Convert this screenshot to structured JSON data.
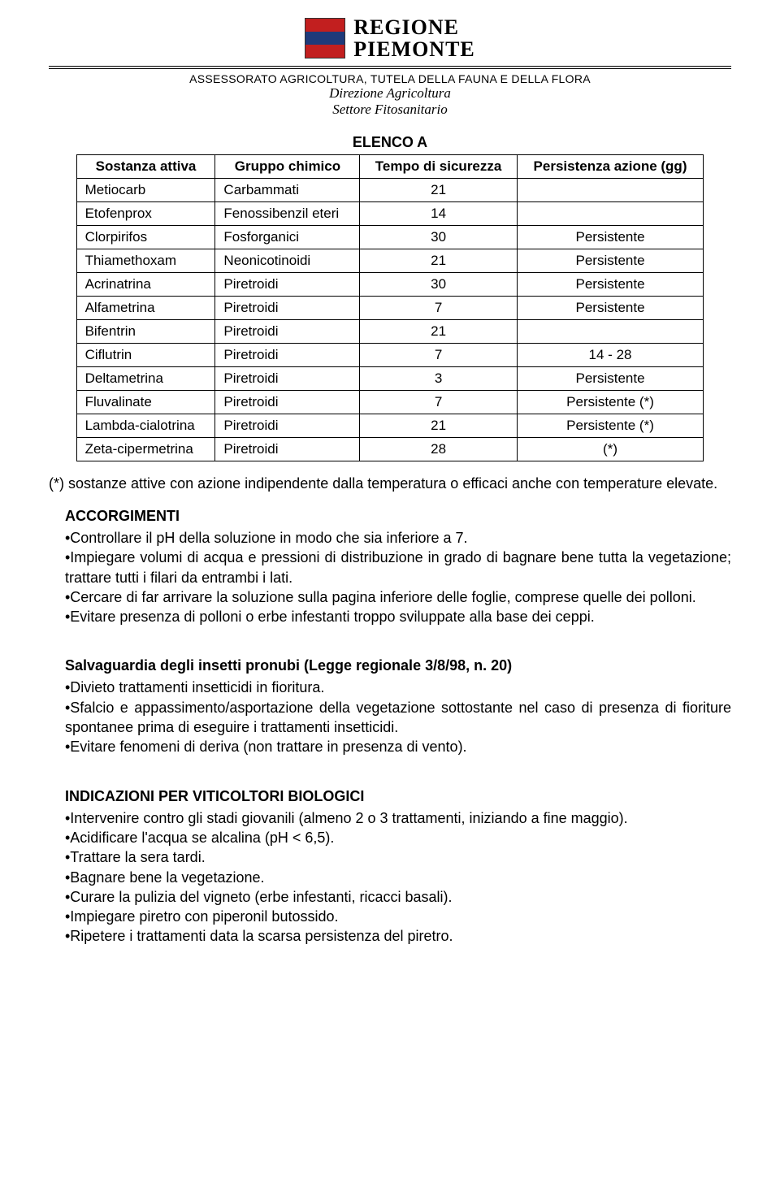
{
  "logo": {
    "line1": "REGIONE",
    "line2": "PIEMONTE"
  },
  "header": {
    "assessorato": "ASSESSORATO AGRICOLTURA, TUTELA DELLA FAUNA E DELLA FLORA",
    "direzione": "Direzione Agricoltura",
    "settore": "Settore Fitosanitario"
  },
  "table": {
    "title": "ELENCO A",
    "columns": [
      "Sostanza attiva",
      "Gruppo chimico",
      "Tempo di sicurezza",
      "Persistenza azione (gg)"
    ],
    "rows": [
      [
        "Metiocarb",
        "Carbammati",
        "21",
        ""
      ],
      [
        "Etofenprox",
        "Fenossibenzil eteri",
        "14",
        ""
      ],
      [
        "Clorpirifos",
        "Fosforganici",
        "30",
        "Persistente"
      ],
      [
        "Thiamethoxam",
        "Neonicotinoidi",
        "21",
        "Persistente"
      ],
      [
        "Acrinatrina",
        "Piretroidi",
        "30",
        "Persistente"
      ],
      [
        "Alfametrina",
        "Piretroidi",
        "7",
        "Persistente"
      ],
      [
        "Bifentrin",
        "Piretroidi",
        "21",
        ""
      ],
      [
        "Ciflutrin",
        "Piretroidi",
        "7",
        "14 - 28"
      ],
      [
        "Deltametrina",
        "Piretroidi",
        "3",
        "Persistente"
      ],
      [
        "Fluvalinate",
        "Piretroidi",
        "7",
        "Persistente (*)"
      ],
      [
        "Lambda-cialotrina",
        "Piretroidi",
        "21",
        "Persistente (*)"
      ],
      [
        "Zeta-cipermetrina",
        "Piretroidi",
        "28",
        "(*)"
      ]
    ]
  },
  "footnote": "(*) sostanze attive con azione indipendente dalla temperatura o efficaci anche con temperature elevate.",
  "accorgimenti": {
    "title": "ACCORGIMENTI",
    "items": [
      "•Controllare il pH della soluzione in modo che sia inferiore a 7.",
      "•Impiegare volumi di acqua e pressioni di distribuzione in grado di bagnare bene tutta la vegetazione; trattare tutti i filari da entrambi i lati.",
      "•Cercare di far arrivare la soluzione sulla pagina inferiore delle foglie, comprese quelle dei polloni.",
      "•Evitare presenza di polloni o erbe infestanti troppo sviluppate alla base dei ceppi."
    ]
  },
  "salvaguardia": {
    "title": "Salvaguardia degli insetti pronubi (Legge regionale 3/8/98, n. 20)",
    "items": [
      "•Divieto trattamenti insetticidi in fioritura.",
      "•Sfalcio e appassimento/asportazione della vegetazione sottostante nel caso di presenza di fioriture spontanee prima di eseguire i trattamenti insetticidi.",
      "•Evitare fenomeni di deriva (non trattare in presenza di vento)."
    ]
  },
  "biologici": {
    "title": "INDICAZIONI PER VITICOLTORI BIOLOGICI",
    "items": [
      "•Intervenire contro gli stadi giovanili (almeno 2 o 3 trattamenti, iniziando a fine maggio).",
      "•Acidificare l'acqua se alcalina (pH < 6,5).",
      "•Trattare la sera tardi.",
      "•Bagnare bene la vegetazione.",
      "•Curare la pulizia del vigneto (erbe infestanti, ricacci basali).",
      "•Impiegare piretro con piperonil butossido.",
      "•Ripetere i trattamenti data la scarsa persistenza del piretro."
    ]
  }
}
